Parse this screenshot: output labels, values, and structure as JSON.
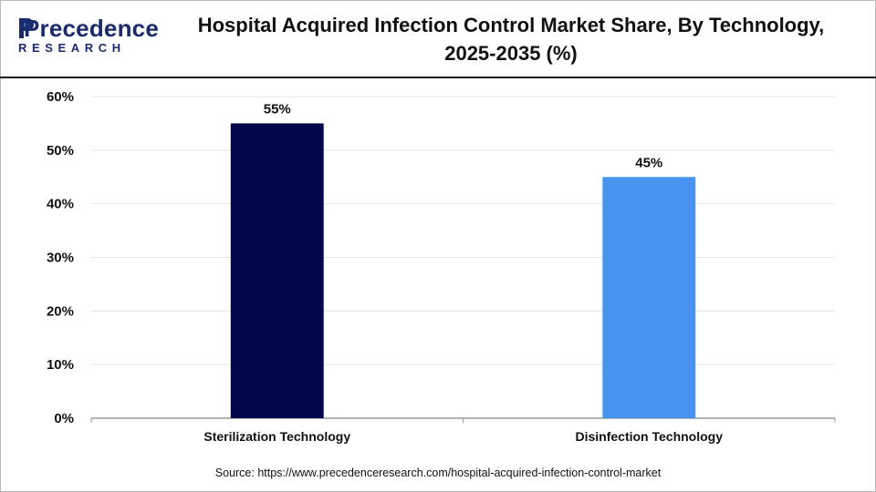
{
  "brand": {
    "name_text": "Precedence",
    "sub_text": "RESEARCH",
    "primary_color": "#1a2b6d",
    "accent_color": "#2f7de1"
  },
  "title": "Hospital Acquired Infection Control Market Share, By Technology, 2025-2035 (%)",
  "source": "Source: https://www.precedenceresearch.com/hospital-acquired-infection-control-market",
  "chart_data": {
    "type": "bar",
    "categories": [
      "Sterilization Technology",
      "Disinfection Technology"
    ],
    "values": [
      55,
      45
    ],
    "data_labels": [
      "55%",
      "45%"
    ],
    "bar_colors": [
      "#02064a",
      "#4693f0"
    ],
    "ylim": [
      0,
      60
    ],
    "yticks": [
      0,
      10,
      20,
      30,
      40,
      50,
      60
    ],
    "ytick_labels": [
      "0%",
      "10%",
      "20%",
      "30%",
      "40%",
      "50%",
      "60%"
    ],
    "grid": true,
    "legend": "none"
  }
}
